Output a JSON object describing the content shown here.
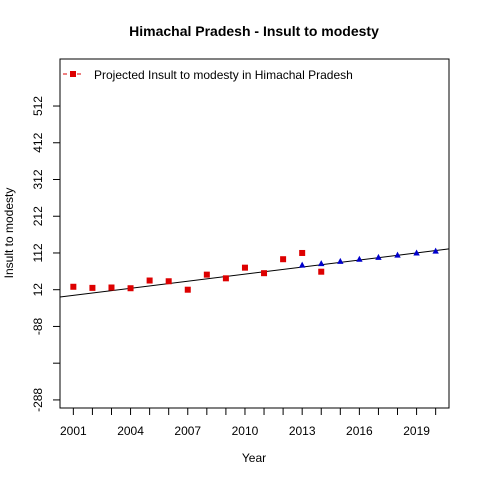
{
  "chart_data": {
    "type": "scatter",
    "title": "Himachal Pradesh  -  Insult to modesty",
    "xlabel": "Year",
    "ylabel": "Insult to modesty",
    "xlim": [
      2000.3,
      2020.7
    ],
    "ylim": [
      -310,
      640
    ],
    "x_ticks": [
      2001,
      2002,
      2003,
      2004,
      2005,
      2006,
      2007,
      2008,
      2009,
      2010,
      2011,
      2012,
      2013,
      2014,
      2015,
      2016,
      2017,
      2018,
      2019,
      2020
    ],
    "x_tick_labels": [
      2001,
      2004,
      2007,
      2010,
      2013,
      2016,
      2019
    ],
    "y_ticks": [
      -288,
      -188,
      -88,
      12,
      112,
      212,
      312,
      412,
      512
    ],
    "y_tick_labels": [
      -288,
      -88,
      12,
      112,
      212,
      312,
      412,
      512
    ],
    "legend": {
      "position": "top-left",
      "label": "Projected  Insult to modesty  in  Himachal Pradesh"
    },
    "series": [
      {
        "marker": "square",
        "color": "#dd0000",
        "points": [
          [
            2001,
            20
          ],
          [
            2002,
            17
          ],
          [
            2003,
            18
          ],
          [
            2004,
            16
          ],
          [
            2005,
            37
          ],
          [
            2006,
            35
          ],
          [
            2007,
            12
          ],
          [
            2008,
            53
          ],
          [
            2009,
            43
          ],
          [
            2010,
            72
          ],
          [
            2011,
            57
          ],
          [
            2012,
            95
          ],
          [
            2013,
            112
          ],
          [
            2014,
            61
          ]
        ]
      },
      {
        "marker": "triangle",
        "color": "#0000cc",
        "points": [
          [
            2013,
            79
          ],
          [
            2014,
            83
          ],
          [
            2015,
            89
          ],
          [
            2016,
            95
          ],
          [
            2017,
            100
          ],
          [
            2018,
            106
          ],
          [
            2019,
            112
          ],
          [
            2020,
            117
          ]
        ]
      }
    ],
    "trend_line": {
      "start": [
        2000.3,
        -8
      ],
      "end": [
        2020.7,
        123
      ]
    }
  }
}
